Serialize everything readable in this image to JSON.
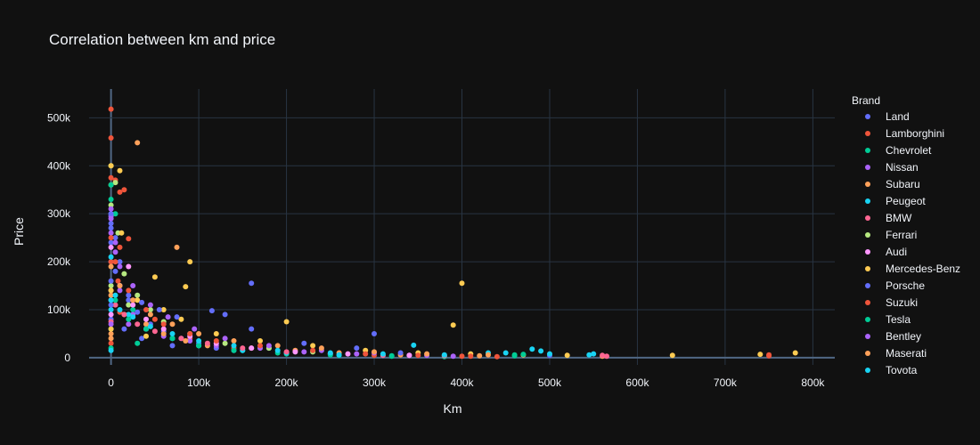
{
  "chart_data": {
    "type": "scatter",
    "title": "Correlation between km and price",
    "xlabel": "Km",
    "ylabel": "Price",
    "xlim": [
      -25000,
      825000
    ],
    "ylim": [
      -15000,
      560000
    ],
    "x_ticks": [
      0,
      100000,
      200000,
      300000,
      400000,
      500000,
      600000,
      700000,
      800000
    ],
    "x_tick_labels": [
      "0",
      "100k",
      "200k",
      "300k",
      "400k",
      "500k",
      "600k",
      "700k",
      "800k"
    ],
    "y_ticks": [
      0,
      100000,
      200000,
      300000,
      400000,
      500000
    ],
    "y_tick_labels": [
      "0",
      "100k",
      "200k",
      "300k",
      "400k",
      "500k"
    ],
    "grid": true,
    "legend_title": "Brand",
    "legend_position": "right",
    "series": [
      {
        "name": "Land",
        "color": "#636efa",
        "points": [
          [
            0,
            300000
          ],
          [
            0,
            270000
          ],
          [
            0,
            240000
          ],
          [
            0,
            200000
          ],
          [
            5000,
            180000
          ],
          [
            10000,
            150000
          ],
          [
            20000,
            120000
          ],
          [
            30000,
            95000
          ],
          [
            45000,
            70000
          ],
          [
            60000,
            55000
          ],
          [
            80000,
            40000
          ],
          [
            100000,
            30000
          ],
          [
            120000,
            20000
          ],
          [
            160000,
            155000
          ],
          [
            300000,
            50000
          ],
          [
            0,
            80000
          ],
          [
            15000,
            60000
          ],
          [
            35000,
            40000
          ],
          [
            70000,
            25000
          ],
          [
            140000,
            15000
          ],
          [
            200000,
            10000
          ],
          [
            250000,
            8000
          ],
          [
            180000,
            20000
          ]
        ]
      },
      {
        "name": "Lamborghini",
        "color": "#ef553b",
        "points": [
          [
            0,
            518000
          ],
          [
            0,
            458000
          ],
          [
            0,
            375000
          ],
          [
            5000,
            370000
          ],
          [
            15000,
            350000
          ],
          [
            20000,
            248000
          ],
          [
            10000,
            230000
          ],
          [
            0,
            200000
          ],
          [
            8000,
            160000
          ],
          [
            25000,
            120000
          ],
          [
            50000,
            80000
          ],
          [
            90000,
            40000
          ],
          [
            140000,
            20000
          ],
          [
            200000,
            10000
          ],
          [
            300000,
            5000
          ],
          [
            400000,
            3000
          ],
          [
            750000,
            4000
          ],
          [
            750000,
            6000
          ],
          [
            440000,
            2000
          ],
          [
            10000,
            95000
          ]
        ]
      },
      {
        "name": "Chevrolet",
        "color": "#00cc96",
        "points": [
          [
            0,
            330000
          ],
          [
            5000,
            300000
          ],
          [
            10000,
            150000
          ],
          [
            25000,
            100000
          ],
          [
            40000,
            60000
          ],
          [
            70000,
            40000
          ],
          [
            100000,
            25000
          ],
          [
            150000,
            15000
          ],
          [
            200000,
            8000
          ],
          [
            260000,
            5000
          ],
          [
            320000,
            3000
          ],
          [
            380000,
            2000
          ],
          [
            460000,
            4000
          ],
          [
            0,
            60000
          ],
          [
            30000,
            30000
          ]
        ]
      },
      {
        "name": "Nissan",
        "color": "#ab63fa",
        "points": [
          [
            0,
            295000
          ],
          [
            0,
            260000
          ],
          [
            5000,
            220000
          ],
          [
            10000,
            140000
          ],
          [
            25000,
            90000
          ],
          [
            40000,
            60000
          ],
          [
            60000,
            45000
          ],
          [
            90000,
            35000
          ],
          [
            120000,
            25000
          ],
          [
            170000,
            20000
          ],
          [
            220000,
            12000
          ],
          [
            280000,
            8000
          ],
          [
            340000,
            5000
          ],
          [
            390000,
            3000
          ],
          [
            0,
            120000
          ],
          [
            20000,
            70000
          ]
        ]
      },
      {
        "name": "Subaru",
        "color": "#ffa15a",
        "points": [
          [
            30000,
            448000
          ],
          [
            75000,
            230000
          ],
          [
            0,
            130000
          ],
          [
            15000,
            90000
          ],
          [
            40000,
            70000
          ],
          [
            60000,
            50000
          ],
          [
            85000,
            35000
          ],
          [
            110000,
            25000
          ],
          [
            160000,
            20000
          ],
          [
            210000,
            15000
          ],
          [
            260000,
            10000
          ],
          [
            330000,
            6000
          ],
          [
            380000,
            5000
          ],
          [
            420000,
            4000
          ],
          [
            560000,
            3000
          ],
          [
            0,
            50000
          ]
        ]
      },
      {
        "name": "Peugeot",
        "color": "#19d3f3",
        "points": [
          [
            0,
            210000
          ],
          [
            5000,
            130000
          ],
          [
            20000,
            90000
          ],
          [
            40000,
            60000
          ],
          [
            70000,
            40000
          ],
          [
            100000,
            25000
          ],
          [
            150000,
            15000
          ],
          [
            200000,
            10000
          ],
          [
            260000,
            6000
          ],
          [
            310000,
            5000
          ],
          [
            345000,
            26000
          ],
          [
            430000,
            10000
          ],
          [
            480000,
            18000
          ],
          [
            490000,
            14000
          ],
          [
            550000,
            8000
          ],
          [
            0,
            100000
          ]
        ]
      },
      {
        "name": "BMW",
        "color": "#ff6692",
        "points": [
          [
            0,
            140000
          ],
          [
            5000,
            110000
          ],
          [
            15000,
            90000
          ],
          [
            30000,
            70000
          ],
          [
            50000,
            55000
          ],
          [
            80000,
            40000
          ],
          [
            110000,
            30000
          ],
          [
            150000,
            20000
          ],
          [
            200000,
            12000
          ],
          [
            250000,
            8000
          ],
          [
            310000,
            5000
          ],
          [
            380000,
            4000
          ],
          [
            560000,
            5000
          ],
          [
            565000,
            3000
          ],
          [
            0,
            75000
          ]
        ]
      },
      {
        "name": "Ferrari",
        "color": "#b6e880",
        "points": [
          [
            0,
            400000
          ],
          [
            5000,
            365000
          ],
          [
            0,
            318000
          ],
          [
            8000,
            260000
          ],
          [
            15000,
            175000
          ],
          [
            30000,
            130000
          ],
          [
            45000,
            100000
          ],
          [
            60000,
            75000
          ],
          [
            90000,
            50000
          ],
          [
            130000,
            30000
          ],
          [
            180000,
            20000
          ],
          [
            230000,
            12000
          ],
          [
            0,
            150000
          ],
          [
            20000,
            110000
          ]
        ]
      },
      {
        "name": "Audi",
        "color": "#ff97ff",
        "points": [
          [
            0,
            230000
          ],
          [
            20000,
            190000
          ],
          [
            10000,
            150000
          ],
          [
            25000,
            110000
          ],
          [
            40000,
            80000
          ],
          [
            60000,
            60000
          ],
          [
            90000,
            45000
          ],
          [
            120000,
            30000
          ],
          [
            160000,
            20000
          ],
          [
            210000,
            12000
          ],
          [
            270000,
            8000
          ],
          [
            340000,
            5000
          ],
          [
            0,
            90000
          ]
        ]
      },
      {
        "name": "Mercedes-Benz",
        "color": "#fecb52",
        "points": [
          [
            0,
            400000
          ],
          [
            10000,
            390000
          ],
          [
            0,
            360000
          ],
          [
            12000,
            260000
          ],
          [
            90000,
            200000
          ],
          [
            50000,
            168000
          ],
          [
            85000,
            148000
          ],
          [
            400000,
            155000
          ],
          [
            0,
            140000
          ],
          [
            30000,
            120000
          ],
          [
            60000,
            100000
          ],
          [
            200000,
            75000
          ],
          [
            390000,
            68000
          ],
          [
            80000,
            80000
          ],
          [
            120000,
            50000
          ],
          [
            170000,
            35000
          ],
          [
            230000,
            25000
          ],
          [
            290000,
            15000
          ],
          [
            350000,
            10000
          ],
          [
            410000,
            8000
          ],
          [
            470000,
            6000
          ],
          [
            520000,
            5000
          ],
          [
            640000,
            5000
          ],
          [
            740000,
            7000
          ],
          [
            780000,
            10000
          ],
          [
            0,
            60000
          ],
          [
            40000,
            45000
          ]
        ]
      },
      {
        "name": "Porsche",
        "color": "#636efa",
        "points": [
          [
            0,
            300000
          ],
          [
            0,
            280000
          ],
          [
            5000,
            250000
          ],
          [
            10000,
            200000
          ],
          [
            0,
            160000
          ],
          [
            20000,
            130000
          ],
          [
            35000,
            115000
          ],
          [
            55000,
            100000
          ],
          [
            75000,
            85000
          ],
          [
            115000,
            98000
          ],
          [
            130000,
            90000
          ],
          [
            160000,
            60000
          ],
          [
            220000,
            30000
          ],
          [
            280000,
            20000
          ],
          [
            330000,
            10000
          ],
          [
            500000,
            5000
          ],
          [
            0,
            110000
          ]
        ]
      },
      {
        "name": "Suzuki",
        "color": "#ef553b",
        "points": [
          [
            10000,
            345000
          ],
          [
            0,
            250000
          ],
          [
            5000,
            200000
          ],
          [
            20000,
            140000
          ],
          [
            40000,
            100000
          ],
          [
            60000,
            70000
          ],
          [
            90000,
            50000
          ],
          [
            120000,
            35000
          ],
          [
            170000,
            25000
          ],
          [
            230000,
            15000
          ],
          [
            290000,
            8000
          ],
          [
            350000,
            5000
          ],
          [
            410000,
            3000
          ],
          [
            0,
            30000
          ]
        ]
      },
      {
        "name": "Tesla",
        "color": "#00cc96",
        "points": [
          [
            0,
            360000
          ],
          [
            5000,
            120000
          ],
          [
            20000,
            80000
          ],
          [
            40000,
            60000
          ],
          [
            70000,
            40000
          ],
          [
            100000,
            25000
          ],
          [
            140000,
            15000
          ],
          [
            190000,
            10000
          ],
          [
            250000,
            6000
          ],
          [
            320000,
            4000
          ],
          [
            460000,
            6000
          ],
          [
            470000,
            7000
          ],
          [
            0,
            20000
          ]
        ]
      },
      {
        "name": "Bentley",
        "color": "#ab63fa",
        "points": [
          [
            0,
            310000
          ],
          [
            0,
            290000
          ],
          [
            5000,
            240000
          ],
          [
            10000,
            190000
          ],
          [
            25000,
            150000
          ],
          [
            45000,
            110000
          ],
          [
            65000,
            85000
          ],
          [
            95000,
            60000
          ],
          [
            130000,
            40000
          ],
          [
            180000,
            25000
          ],
          [
            240000,
            15000
          ],
          [
            300000,
            10000
          ],
          [
            360000,
            5000
          ],
          [
            0,
            70000
          ]
        ]
      },
      {
        "name": "Maserati",
        "color": "#ffa15a",
        "points": [
          [
            0,
            190000
          ],
          [
            10000,
            150000
          ],
          [
            25000,
            120000
          ],
          [
            45000,
            90000
          ],
          [
            70000,
            70000
          ],
          [
            100000,
            50000
          ],
          [
            140000,
            35000
          ],
          [
            190000,
            25000
          ],
          [
            240000,
            20000
          ],
          [
            300000,
            12000
          ],
          [
            360000,
            8000
          ],
          [
            430000,
            6000
          ],
          [
            0,
            40000
          ]
        ]
      },
      {
        "name": "Tovota",
        "color": "#19d3f3",
        "points": [
          [
            0,
            120000
          ],
          [
            10000,
            100000
          ],
          [
            25000,
            85000
          ],
          [
            45000,
            65000
          ],
          [
            70000,
            50000
          ],
          [
            100000,
            35000
          ],
          [
            140000,
            25000
          ],
          [
            190000,
            15000
          ],
          [
            250000,
            10000
          ],
          [
            310000,
            8000
          ],
          [
            380000,
            6000
          ],
          [
            450000,
            10000
          ],
          [
            500000,
            8000
          ],
          [
            545000,
            6000
          ],
          [
            0,
            15000
          ]
        ]
      }
    ]
  }
}
